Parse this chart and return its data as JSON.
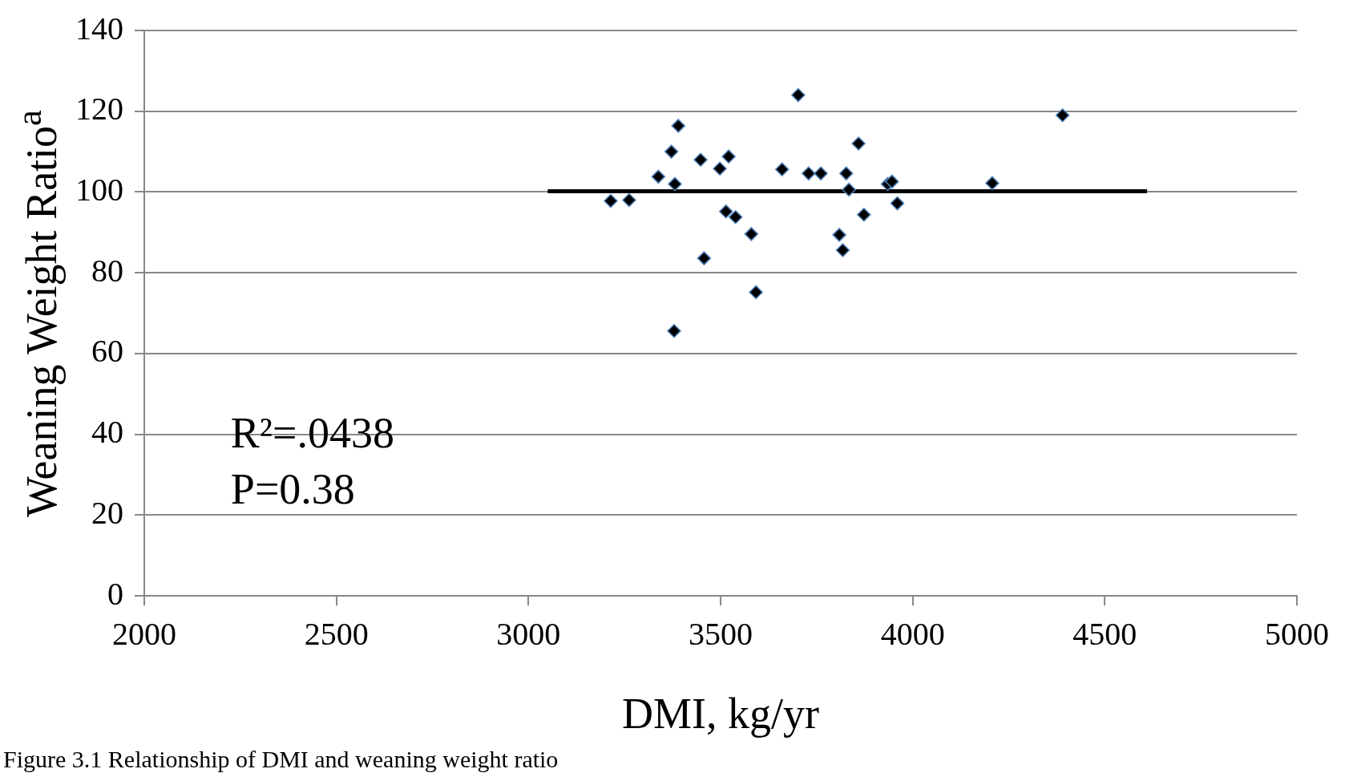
{
  "chart_data": {
    "type": "scatter",
    "xlabel": "DMI, kg/yr",
    "ylabel": "Weaning Weight Ratio$^{a}$",
    "annotations": [
      "R²=.0438",
      "P=0.38",
      "Figure 3.1 Relationship of DMI and weaning weight ratio"
    ],
    "xlim": [
      2000,
      5000
    ],
    "xticks": [
      2000,
      2500,
      3000,
      3500,
      4000,
      4500,
      5000
    ],
    "ylim": [
      0,
      140
    ],
    "yticks": [
      0,
      20,
      40,
      60,
      80,
      100,
      120,
      140
    ],
    "grid": "y",
    "legend": false,
    "series": [
      {
        "color": "#000000",
        "marker": "diamond",
        "x": [
          3214,
          3262,
          3338,
          3372,
          3381,
          3390,
          3379,
          3448,
          3457,
          3498,
          3514,
          3521,
          3539,
          3580,
          3592,
          3660,
          3702,
          3729,
          3761,
          3809,
          3818,
          3827,
          3834,
          3859,
          3873,
          3935,
          3946,
          3960,
          4207,
          4390
        ],
        "values": [
          97.8,
          98,
          103.8,
          110,
          102,
          116.4,
          65.6,
          108,
          83.6,
          105.8,
          95.2,
          108.8,
          93.8,
          89.6,
          75.2,
          105.6,
          124,
          104.6,
          104.6,
          89.4,
          85.6,
          104.6,
          100.6,
          112,
          94.4,
          102,
          102.6,
          97.2,
          102.2,
          119
        ]
      },
      {
        "type": "line",
        "color": "#000000",
        "x": [
          3050,
          4610
        ],
        "values": [
          100.2,
          100.2
        ]
      }
    ]
  }
}
